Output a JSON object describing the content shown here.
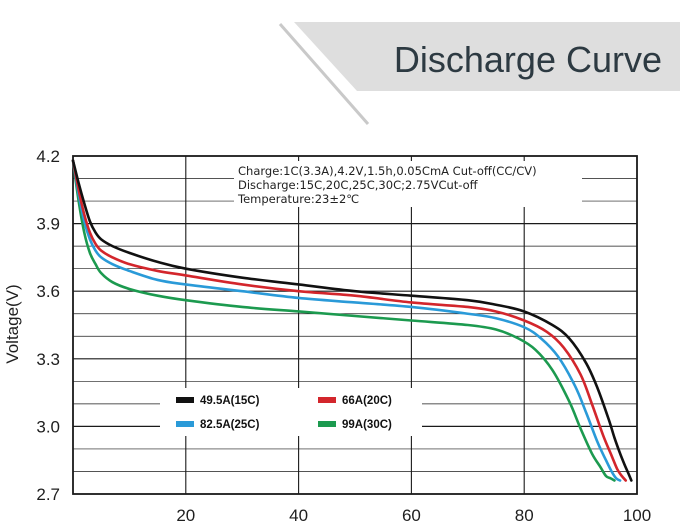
{
  "chart_data": {
    "type": "line",
    "title": "Discharge Curve",
    "xlabel": "",
    "ylabel": "Voltage(V)",
    "xlim": [
      0,
      100
    ],
    "ylim": [
      2.7,
      4.2
    ],
    "x_ticks": [
      20,
      40,
      60,
      80,
      100
    ],
    "x_tick_labels": [
      "20",
      "40",
      "60",
      "80",
      "100"
    ],
    "y_ticks": [
      2.7,
      3.0,
      3.3,
      3.6,
      3.9,
      4.2
    ],
    "y_tick_labels": [
      "2.7",
      "3.0",
      "3.3",
      "3.6",
      "3.9",
      "4.2"
    ],
    "grid": true,
    "annotations": [
      "Charge:1C(3.3A),4.2V,1.5h,0.05CmA Cut-off(CC/CV)",
      "Discharge:15C,20C,25C,30C;2.75VCut-off",
      "Temperature:23±2℃"
    ],
    "series": [
      {
        "name": "49.5A(15C)",
        "color": "#111111",
        "x": [
          0,
          1,
          2,
          3,
          4,
          5,
          7,
          10,
          15,
          20,
          30,
          40,
          50,
          60,
          70,
          75,
          80,
          85,
          88,
          91,
          93,
          95,
          96,
          97,
          97.8,
          98.5,
          99
        ],
        "y": [
          4.18,
          4.08,
          3.99,
          3.91,
          3.86,
          3.83,
          3.8,
          3.77,
          3.73,
          3.7,
          3.66,
          3.63,
          3.6,
          3.58,
          3.56,
          3.54,
          3.51,
          3.45,
          3.39,
          3.28,
          3.17,
          3.03,
          2.95,
          2.88,
          2.83,
          2.79,
          2.76
        ]
      },
      {
        "name": "66A(20C)",
        "color": "#d3262c",
        "x": [
          0,
          1,
          2,
          3,
          4,
          5,
          7,
          10,
          15,
          20,
          30,
          40,
          50,
          60,
          70,
          75,
          80,
          84,
          87,
          90,
          92,
          94,
          95.5,
          96.5,
          97.3,
          98
        ],
        "y": [
          4.18,
          4.05,
          3.94,
          3.86,
          3.81,
          3.78,
          3.75,
          3.72,
          3.69,
          3.67,
          3.63,
          3.6,
          3.58,
          3.55,
          3.53,
          3.51,
          3.47,
          3.42,
          3.35,
          3.23,
          3.1,
          2.96,
          2.87,
          2.81,
          2.78,
          2.76
        ]
      },
      {
        "name": "82.5A(25C)",
        "color": "#2a9ad8",
        "x": [
          0,
          1,
          2,
          3,
          4,
          5,
          7,
          10,
          15,
          20,
          30,
          40,
          50,
          60,
          70,
          75,
          80,
          83,
          86,
          89,
          91,
          93,
          94.5,
          95.5,
          96.3,
          97
        ],
        "y": [
          4.18,
          4.03,
          3.91,
          3.83,
          3.78,
          3.75,
          3.72,
          3.69,
          3.65,
          3.63,
          3.6,
          3.57,
          3.55,
          3.53,
          3.5,
          3.48,
          3.44,
          3.39,
          3.31,
          3.18,
          3.06,
          2.93,
          2.85,
          2.8,
          2.77,
          2.76
        ]
      },
      {
        "name": "99A(30C)",
        "color": "#1c9a4f",
        "x": [
          0,
          1,
          2,
          3,
          4,
          5,
          7,
          10,
          15,
          20,
          30,
          40,
          50,
          60,
          70,
          75,
          79,
          82,
          85,
          88,
          90,
          92,
          93.5,
          94.5,
          95.3,
          96
        ],
        "y": [
          4.18,
          4.0,
          3.86,
          3.77,
          3.72,
          3.68,
          3.64,
          3.61,
          3.58,
          3.56,
          3.53,
          3.51,
          3.49,
          3.47,
          3.45,
          3.43,
          3.39,
          3.34,
          3.25,
          3.11,
          2.99,
          2.88,
          2.82,
          2.78,
          2.77,
          2.76
        ]
      }
    ]
  },
  "colors": {
    "title_band": "#dcdcdc",
    "grid": "#1a1a1a"
  }
}
